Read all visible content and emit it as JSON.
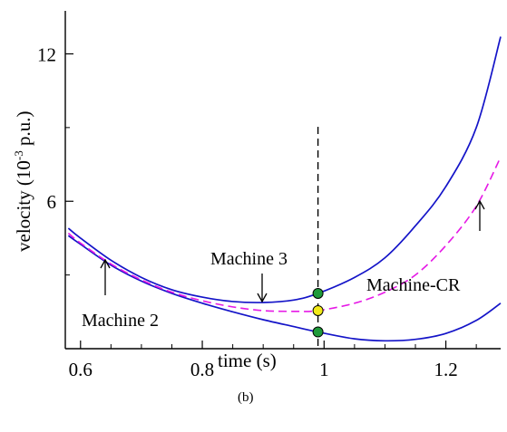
{
  "chart_data": {
    "type": "line",
    "xlabel": "time (s)",
    "ylabel_main": "velocity (10",
    "ylabel_exp": "-3",
    "ylabel_unit": " p.u.)",
    "caption": "(b)",
    "xlim": [
      0.575,
      1.29
    ],
    "ylim": [
      0,
      13.75
    ],
    "xticks": [
      0.6,
      0.8,
      1.0,
      1.2
    ],
    "xtick_labels": [
      "0.6",
      "0.8",
      "1",
      "1.2"
    ],
    "yticks": [
      6,
      12
    ],
    "ytick_labels": [
      "6",
      "12"
    ],
    "vline_x": 0.99,
    "colors": {
      "machine": "#1414c8",
      "cr": "#e619e6",
      "dot_green": "#1f9a3a",
      "dot_yellow": "#f2ea1a"
    },
    "series": [
      {
        "name": "Machine 3",
        "style": "solid",
        "x": [
          0.58,
          0.6,
          0.65,
          0.7,
          0.75,
          0.8,
          0.85,
          0.9,
          0.95,
          0.99,
          1.05,
          1.1,
          1.15,
          1.2,
          1.25,
          1.29
        ],
        "y": [
          4.9,
          4.5,
          3.6,
          2.9,
          2.4,
          2.1,
          1.92,
          1.88,
          1.98,
          2.25,
          2.9,
          3.7,
          5.0,
          6.6,
          9.0,
          12.7
        ]
      },
      {
        "name": "Machine 2",
        "style": "solid",
        "x": [
          0.58,
          0.6,
          0.65,
          0.7,
          0.75,
          0.8,
          0.85,
          0.9,
          0.95,
          0.99,
          1.05,
          1.1,
          1.15,
          1.2,
          1.25,
          1.29
        ],
        "y": [
          4.6,
          4.25,
          3.4,
          2.75,
          2.25,
          1.85,
          1.5,
          1.18,
          0.9,
          0.68,
          0.4,
          0.32,
          0.38,
          0.62,
          1.15,
          1.85
        ]
      },
      {
        "name": "Machine-CR",
        "style": "dashed",
        "x": [
          0.58,
          0.6,
          0.65,
          0.7,
          0.75,
          0.8,
          0.85,
          0.9,
          0.95,
          0.99,
          1.05,
          1.1,
          1.15,
          1.2,
          1.25,
          1.29
        ],
        "y": [
          4.7,
          4.3,
          3.45,
          2.8,
          2.3,
          1.95,
          1.7,
          1.55,
          1.52,
          1.55,
          1.85,
          2.3,
          3.0,
          4.2,
          5.8,
          7.8
        ]
      }
    ],
    "markers": [
      {
        "x": 0.99,
        "y": 2.25,
        "color": "dot_green"
      },
      {
        "x": 0.99,
        "y": 1.55,
        "color": "dot_yellow"
      },
      {
        "x": 0.99,
        "y": 0.68,
        "color": "dot_green"
      }
    ],
    "annotations": [
      {
        "text": "Machine 3"
      },
      {
        "text": "Machine 2"
      },
      {
        "text": "Machine-CR"
      }
    ]
  }
}
